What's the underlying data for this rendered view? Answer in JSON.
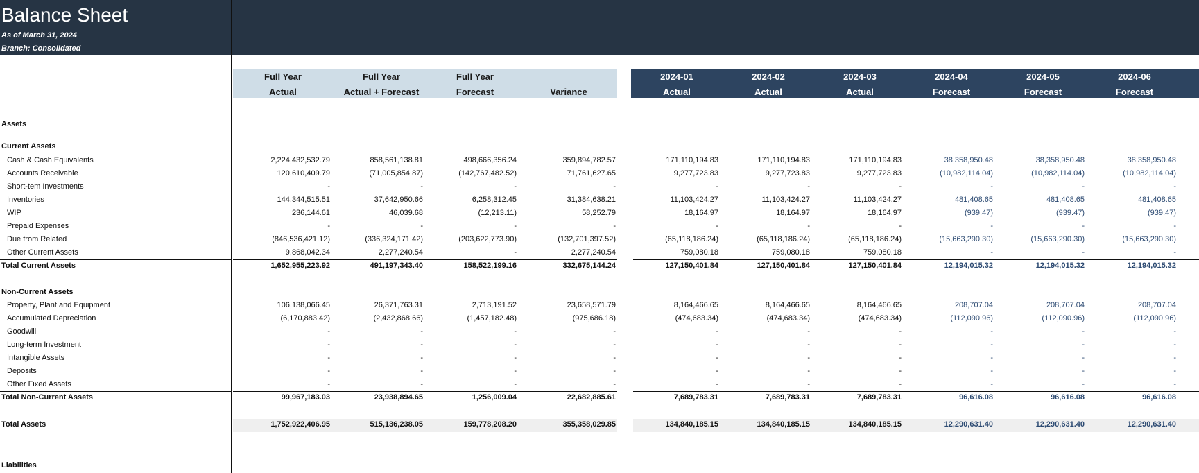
{
  "header": {
    "title": "Balance Sheet",
    "as_of": "As of March 31, 2024",
    "branch": "Branch: Consolidated"
  },
  "columns": [
    {
      "line1": "Full Year",
      "line2": "Actual",
      "group": "summary"
    },
    {
      "line1": "Full Year",
      "line2": "Actual + Forecast",
      "group": "summary"
    },
    {
      "line1": "Full Year",
      "line2": "Forecast",
      "group": "summary"
    },
    {
      "line1": "",
      "line2": "Variance",
      "group": "summary"
    },
    {
      "line1": "2024-01",
      "line2": "Actual",
      "group": "month"
    },
    {
      "line1": "2024-02",
      "line2": "Actual",
      "group": "month"
    },
    {
      "line1": "2024-03",
      "line2": "Actual",
      "group": "month"
    },
    {
      "line1": "2024-04",
      "line2": "Forecast",
      "group": "month"
    },
    {
      "line1": "2024-05",
      "line2": "Forecast",
      "group": "month"
    },
    {
      "line1": "2024-06",
      "line2": "Forecast",
      "group": "month"
    }
  ],
  "rows": [
    {
      "label": "Assets",
      "type": "section"
    },
    {
      "label": "Current Assets",
      "type": "section"
    },
    {
      "label": "Cash & Cash Equivalents",
      "type": "item",
      "values": [
        "2,224,432,532.79",
        "858,561,138.81",
        "498,666,356.24",
        "359,894,782.57",
        "171,110,194.83",
        "171,110,194.83",
        "171,110,194.83",
        "38,358,950.48",
        "38,358,950.48",
        "38,358,950.48"
      ]
    },
    {
      "label": "Accounts Receivable",
      "type": "item",
      "values": [
        "120,610,409.79",
        "(71,005,854.87)",
        "(142,767,482.52)",
        "71,761,627.65",
        "9,277,723.83",
        "9,277,723.83",
        "9,277,723.83",
        "(10,982,114.04)",
        "(10,982,114.04)",
        "(10,982,114.04)"
      ]
    },
    {
      "label": "Short-tem Investments",
      "type": "item",
      "values": [
        "-",
        "-",
        "-",
        "-",
        "-",
        "-",
        "-",
        "-",
        "-",
        "-"
      ]
    },
    {
      "label": "Inventories",
      "type": "item",
      "values": [
        "144,344,515.51",
        "37,642,950.66",
        "6,258,312.45",
        "31,384,638.21",
        "11,103,424.27",
        "11,103,424.27",
        "11,103,424.27",
        "481,408.65",
        "481,408.65",
        "481,408.65"
      ]
    },
    {
      "label": "WIP",
      "type": "item",
      "values": [
        "236,144.61",
        "46,039.68",
        "(12,213.11)",
        "58,252.79",
        "18,164.97",
        "18,164.97",
        "18,164.97",
        "(939.47)",
        "(939.47)",
        "(939.47)"
      ]
    },
    {
      "label": "Prepaid Expenses",
      "type": "item",
      "values": [
        "-",
        "-",
        "-",
        "-",
        "-",
        "-",
        "-",
        "-",
        "-",
        "-"
      ]
    },
    {
      "label": "Due from Related",
      "type": "item",
      "values": [
        "(846,536,421.12)",
        "(336,324,171.42)",
        "(203,622,773.90)",
        "(132,701,397.52)",
        "(65,118,186.24)",
        "(65,118,186.24)",
        "(65,118,186.24)",
        "(15,663,290.30)",
        "(15,663,290.30)",
        "(15,663,290.30)"
      ]
    },
    {
      "label": "Other Current Assets",
      "type": "item",
      "values": [
        "9,868,042.34",
        "2,277,240.54",
        "-",
        "2,277,240.54",
        "759,080.18",
        "759,080.18",
        "759,080.18",
        "-",
        "-",
        "-"
      ]
    },
    {
      "label": "Total Current Assets",
      "type": "total",
      "values": [
        "1,652,955,223.92",
        "491,197,343.40",
        "158,522,199.16",
        "332,675,144.24",
        "127,150,401.84",
        "127,150,401.84",
        "127,150,401.84",
        "12,194,015.32",
        "12,194,015.32",
        "12,194,015.32"
      ]
    },
    {
      "label": "Non-Current Assets",
      "type": "section"
    },
    {
      "label": "Property, Plant and Equipment",
      "type": "item",
      "values": [
        "106,138,066.45",
        "26,371,763.31",
        "2,713,191.52",
        "23,658,571.79",
        "8,164,466.65",
        "8,164,466.65",
        "8,164,466.65",
        "208,707.04",
        "208,707.04",
        "208,707.04"
      ]
    },
    {
      "label": "Accumulated Depreciation",
      "type": "item",
      "values": [
        "(6,170,883.42)",
        "(2,432,868.66)",
        "(1,457,182.48)",
        "(975,686.18)",
        "(474,683.34)",
        "(474,683.34)",
        "(474,683.34)",
        "(112,090.96)",
        "(112,090.96)",
        "(112,090.96)"
      ]
    },
    {
      "label": "Goodwill",
      "type": "item",
      "values": [
        "-",
        "-",
        "-",
        "-",
        "-",
        "-",
        "-",
        "-",
        "-",
        "-"
      ]
    },
    {
      "label": "Long-term Investment",
      "type": "item",
      "values": [
        "-",
        "-",
        "-",
        "-",
        "-",
        "-",
        "-",
        "-",
        "-",
        "-"
      ]
    },
    {
      "label": "Intangible Assets",
      "type": "item",
      "values": [
        "-",
        "-",
        "-",
        "-",
        "-",
        "-",
        "-",
        "-",
        "-",
        "-"
      ]
    },
    {
      "label": "Deposits",
      "type": "item",
      "values": [
        "-",
        "-",
        "-",
        "-",
        "-",
        "-",
        "-",
        "-",
        "-",
        "-"
      ]
    },
    {
      "label": "Other Fixed Assets",
      "type": "item",
      "values": [
        "-",
        "-",
        "-",
        "-",
        "-",
        "-",
        "-",
        "-",
        "-",
        "-"
      ]
    },
    {
      "label": "Total Non-Current Assets",
      "type": "total",
      "values": [
        "99,967,183.03",
        "23,938,894.65",
        "1,256,009.04",
        "22,682,885.61",
        "7,689,783.31",
        "7,689,783.31",
        "7,689,783.31",
        "96,616.08",
        "96,616.08",
        "96,616.08"
      ]
    },
    {
      "label": "Total Assets",
      "type": "grand",
      "values": [
        "1,752,922,406.95",
        "515,136,238.05",
        "159,778,208.20",
        "355,358,029.85",
        "134,840,185.15",
        "134,840,185.15",
        "134,840,185.15",
        "12,290,631.40",
        "12,290,631.40",
        "12,290,631.40"
      ]
    },
    {
      "label": "Liabilities",
      "type": "section"
    }
  ]
}
